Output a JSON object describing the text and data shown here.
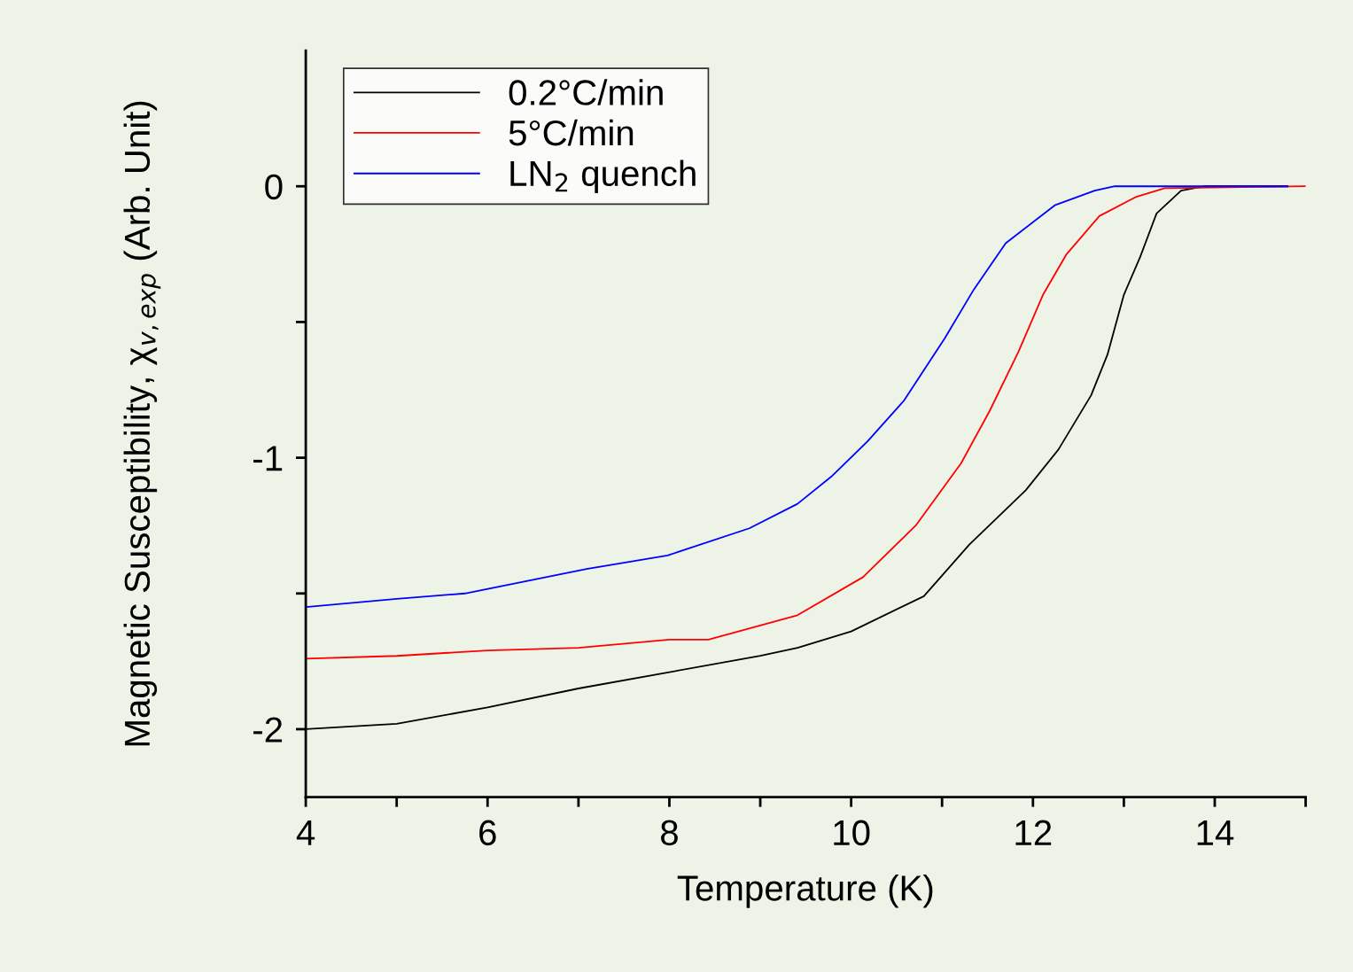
{
  "chart_data": {
    "type": "line",
    "xlabel": "Temperature (K)",
    "ylabel": "Magnetic Susceptibility, χ$_{v,exp}$ (Arb. Unit)",
    "xlim": [
      4,
      15
    ],
    "ylim": [
      -2.25,
      0.5
    ],
    "xticks": [
      4,
      {
        "value": 5,
        "label": null
      },
      6,
      {
        "value": 7,
        "label": null
      },
      8,
      {
        "value": 9,
        "label": null
      },
      10,
      {
        "value": 11,
        "label": null
      },
      12,
      {
        "value": 13,
        "label": null
      },
      14,
      {
        "value": 15,
        "label": null
      }
    ],
    "yticks": [
      -2,
      {
        "value": -1.5,
        "label": null
      },
      -1,
      {
        "value": -0.5,
        "label": null
      },
      0
    ],
    "grid": false,
    "legend": "top left",
    "marker": "none",
    "line_style": "solid",
    "series": [
      {
        "name": "0.2°C/min",
        "color": "#000000",
        "x": [
          4,
          5,
          6,
          7,
          8,
          9,
          9.41,
          10,
          10.8,
          11.3,
          11.92,
          12.28,
          12.64,
          12.82,
          13.0,
          13.18,
          13.36,
          13.63,
          13.89,
          14.8
        ],
        "values": [
          -2.0,
          -1.98,
          -1.92,
          -1.85,
          -1.79,
          -1.73,
          -1.7,
          -1.64,
          -1.51,
          -1.32,
          -1.12,
          -0.97,
          -0.77,
          -0.62,
          -0.4,
          -0.26,
          -0.1,
          -0.016,
          0,
          0
        ]
      },
      {
        "name": "5°C/min",
        "color": "#ff0000",
        "x": [
          4,
          5,
          6,
          7,
          8,
          8.43,
          9.41,
          10.13,
          10.71,
          11.21,
          11.52,
          11.84,
          12.11,
          12.37,
          12.73,
          13.13,
          13.45,
          15
        ],
        "values": [
          -1.74,
          -1.73,
          -1.71,
          -1.7,
          -1.67,
          -1.67,
          -1.58,
          -1.44,
          -1.25,
          -1.02,
          -0.83,
          -0.61,
          -0.4,
          -0.25,
          -0.11,
          -0.04,
          -0.007,
          0
        ]
      },
      {
        "name": "LN$_{2}$ quench",
        "color": "#0000ff",
        "x": [
          4,
          5,
          5.75,
          7.09,
          7.98,
          8.88,
          9.41,
          9.78,
          10.18,
          10.58,
          11.03,
          11.35,
          11.7,
          12.24,
          12.68,
          12.9,
          14.8
        ],
        "values": [
          -1.55,
          -1.52,
          -1.5,
          -1.41,
          -1.36,
          -1.26,
          -1.17,
          -1.07,
          -0.94,
          -0.79,
          -0.56,
          -0.38,
          -0.21,
          -0.07,
          -0.016,
          0,
          0
        ]
      }
    ]
  }
}
